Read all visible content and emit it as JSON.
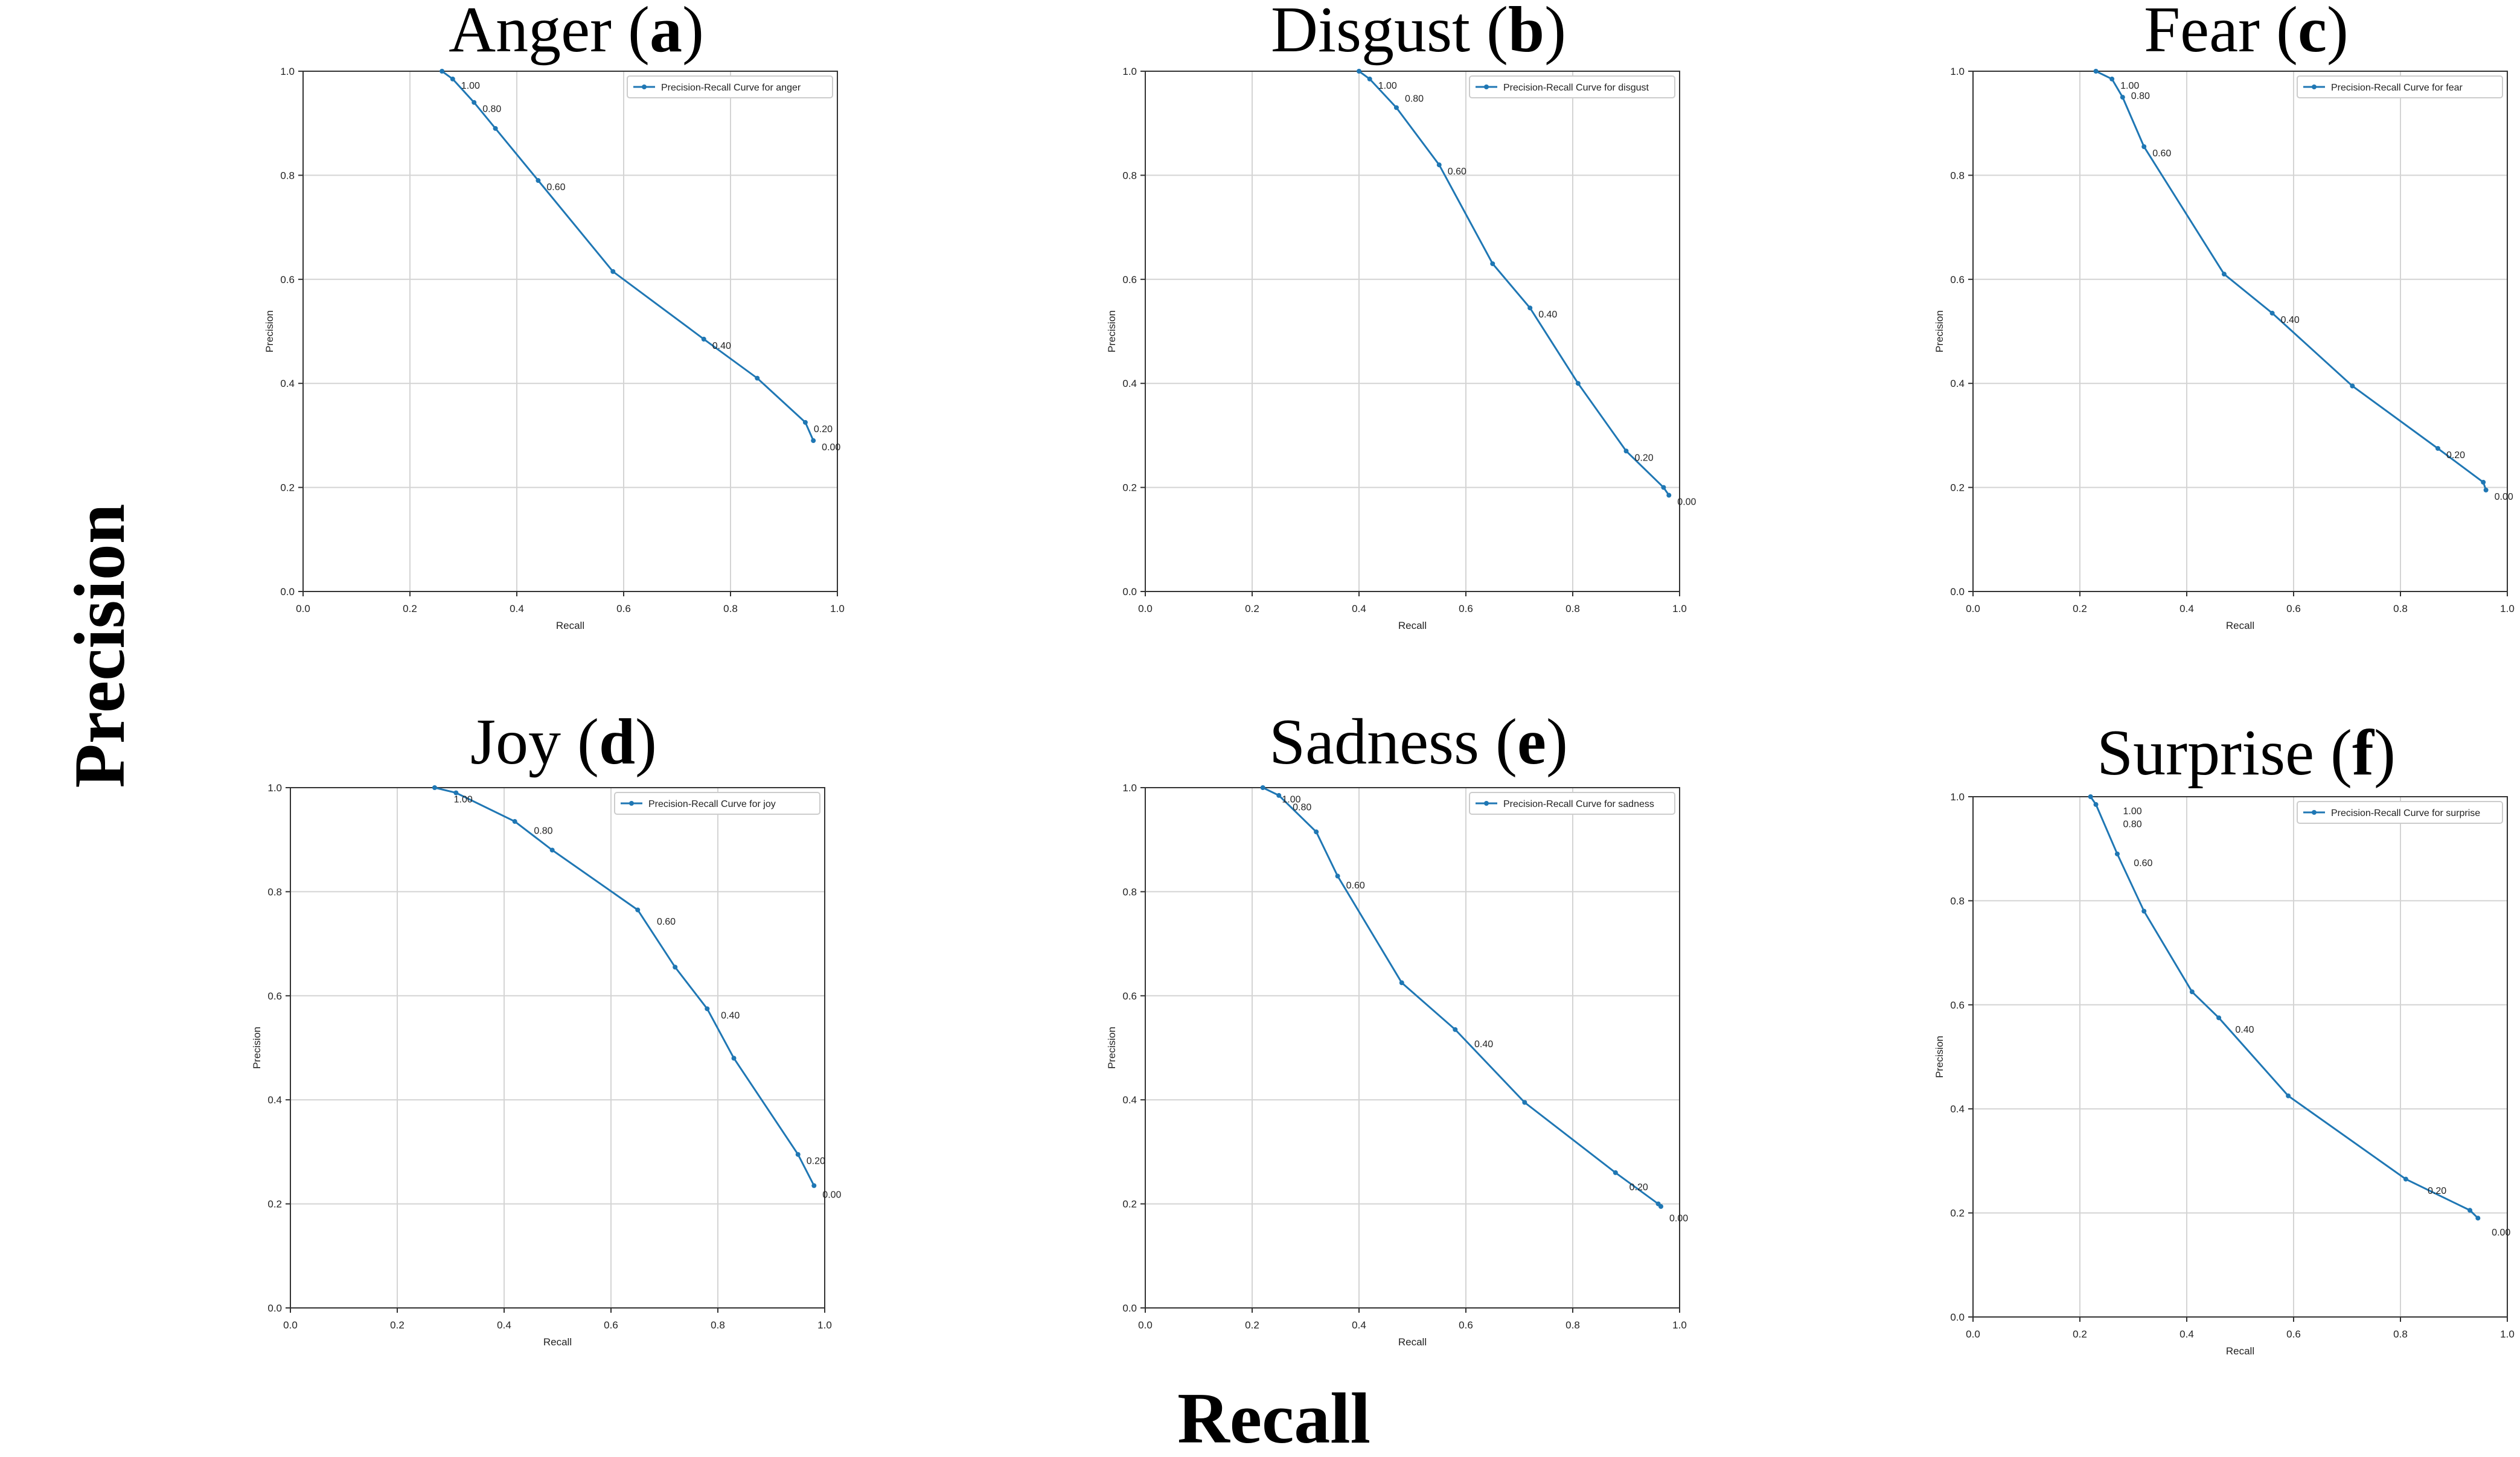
{
  "figure": {
    "xlabel": "Recall",
    "ylabel": "Precision"
  },
  "chart_data": [
    {
      "type": "line",
      "title": "Anger",
      "title_letter": "a",
      "xlabel": "Recall",
      "ylabel": "Precision",
      "xlim": [
        0.0,
        1.0
      ],
      "ylim": [
        0.0,
        1.0
      ],
      "xticks": [
        "0.0",
        "0.2",
        "0.4",
        "0.6",
        "0.8",
        "1.0"
      ],
      "yticks": [
        "0.0",
        "0.2",
        "0.4",
        "0.6",
        "0.8",
        "1.0"
      ],
      "grid": true,
      "legend": "top-right",
      "series": [
        {
          "name": "Precision-Recall Curve for anger",
          "color": "#1f77b4",
          "x": [
            0.26,
            0.28,
            0.32,
            0.36,
            0.44,
            0.58,
            0.75,
            0.85,
            0.94,
            0.955
          ],
          "y": [
            1.0,
            0.985,
            0.94,
            0.89,
            0.79,
            0.615,
            0.485,
            0.41,
            0.325,
            0.29
          ]
        }
      ],
      "annotations": [
        {
          "text": "1.00",
          "x": 0.28,
          "y": 0.985
        },
        {
          "text": "0.80",
          "x": 0.32,
          "y": 0.94
        },
        {
          "text": "0.60",
          "x": 0.44,
          "y": 0.79
        },
        {
          "text": "0.40",
          "x": 0.75,
          "y": 0.485
        },
        {
          "text": "0.20",
          "x": 0.94,
          "y": 0.325
        },
        {
          "text": "0.00",
          "x": 0.955,
          "y": 0.29
        }
      ]
    },
    {
      "type": "line",
      "title": "Disgust",
      "title_letter": "b",
      "xlabel": "Recall",
      "ylabel": "Precision",
      "xlim": [
        0.0,
        1.0
      ],
      "ylim": [
        0.0,
        1.0
      ],
      "xticks": [
        "0.0",
        "0.2",
        "0.4",
        "0.6",
        "0.8",
        "1.0"
      ],
      "yticks": [
        "0.0",
        "0.2",
        "0.4",
        "0.6",
        "0.8",
        "1.0"
      ],
      "grid": true,
      "legend": "top-right",
      "series": [
        {
          "name": "Precision-Recall Curve for disgust",
          "color": "#1f77b4",
          "x": [
            0.4,
            0.42,
            0.47,
            0.55,
            0.65,
            0.72,
            0.81,
            0.9,
            0.97,
            0.98
          ],
          "y": [
            1.0,
            0.985,
            0.93,
            0.82,
            0.63,
            0.545,
            0.4,
            0.27,
            0.2,
            0.185
          ]
        }
      ],
      "annotations": [
        {
          "text": "1.00",
          "x": 0.42,
          "y": 0.985
        },
        {
          "text": "0.80",
          "x": 0.47,
          "y": 0.96
        },
        {
          "text": "0.60",
          "x": 0.55,
          "y": 0.82
        },
        {
          "text": "0.40",
          "x": 0.72,
          "y": 0.545
        },
        {
          "text": "0.20",
          "x": 0.9,
          "y": 0.27
        },
        {
          "text": "0.00",
          "x": 0.98,
          "y": 0.185
        }
      ]
    },
    {
      "type": "line",
      "title": "Fear",
      "title_letter": "c",
      "xlabel": "Recall",
      "ylabel": "Precision",
      "xlim": [
        0.0,
        1.0
      ],
      "ylim": [
        0.0,
        1.0
      ],
      "xticks": [
        "0.0",
        "0.2",
        "0.4",
        "0.6",
        "0.8",
        "1.0"
      ],
      "yticks": [
        "0.0",
        "0.2",
        "0.4",
        "0.6",
        "0.8",
        "1.0"
      ],
      "grid": true,
      "legend": "top-right",
      "series": [
        {
          "name": "Precision-Recall Curve for fear",
          "color": "#1f77b4",
          "x": [
            0.23,
            0.26,
            0.28,
            0.32,
            0.47,
            0.56,
            0.71,
            0.87,
            0.955,
            0.96
          ],
          "y": [
            1.0,
            0.985,
            0.95,
            0.855,
            0.61,
            0.535,
            0.395,
            0.275,
            0.21,
            0.195
          ]
        }
      ],
      "annotations": [
        {
          "text": "1.00",
          "x": 0.26,
          "y": 0.985
        },
        {
          "text": "0.80",
          "x": 0.28,
          "y": 0.965
        },
        {
          "text": "0.60",
          "x": 0.32,
          "y": 0.855
        },
        {
          "text": "0.40",
          "x": 0.56,
          "y": 0.535
        },
        {
          "text": "0.20",
          "x": 0.87,
          "y": 0.275
        },
        {
          "text": "0.00",
          "x": 0.96,
          "y": 0.195
        }
      ]
    },
    {
      "type": "line",
      "title": "Joy",
      "title_letter": "d",
      "xlabel": "Recall",
      "ylabel": "Precision",
      "xlim": [
        0.0,
        1.0
      ],
      "ylim": [
        0.0,
        1.0
      ],
      "xticks": [
        "0.0",
        "0.2",
        "0.4",
        "0.6",
        "0.8",
        "1.0"
      ],
      "yticks": [
        "0.0",
        "0.2",
        "0.4",
        "0.6",
        "0.8",
        "1.0"
      ],
      "grid": true,
      "legend": "top-right",
      "series": [
        {
          "name": "Precision-Recall Curve for joy",
          "color": "#1f77b4",
          "x": [
            0.27,
            0.31,
            0.42,
            0.49,
            0.65,
            0.72,
            0.78,
            0.83,
            0.95,
            0.98
          ],
          "y": [
            1.0,
            0.99,
            0.935,
            0.88,
            0.765,
            0.655,
            0.575,
            0.48,
            0.295,
            0.235
          ]
        }
      ],
      "annotations": [
        {
          "text": "1.00",
          "x": 0.29,
          "y": 0.99
        },
        {
          "text": "0.80",
          "x": 0.44,
          "y": 0.93
        },
        {
          "text": "0.60",
          "x": 0.67,
          "y": 0.755
        },
        {
          "text": "0.40",
          "x": 0.79,
          "y": 0.575
        },
        {
          "text": "0.20",
          "x": 0.95,
          "y": 0.295
        },
        {
          "text": "0.00",
          "x": 0.98,
          "y": 0.23
        }
      ]
    },
    {
      "type": "line",
      "title": "Sadness",
      "title_letter": "e",
      "xlabel": "Recall",
      "ylabel": "Precision",
      "xlim": [
        0.0,
        1.0
      ],
      "ylim": [
        0.0,
        1.0
      ],
      "xticks": [
        "0.0",
        "0.2",
        "0.4",
        "0.6",
        "0.8",
        "1.0"
      ],
      "yticks": [
        "0.0",
        "0.2",
        "0.4",
        "0.6",
        "0.8",
        "1.0"
      ],
      "grid": true,
      "legend": "top-right",
      "series": [
        {
          "name": "Precision-Recall Curve for sadness",
          "color": "#1f77b4",
          "x": [
            0.22,
            0.25,
            0.32,
            0.36,
            0.48,
            0.58,
            0.71,
            0.88,
            0.96,
            0.965
          ],
          "y": [
            1.0,
            0.985,
            0.915,
            0.83,
            0.625,
            0.535,
            0.395,
            0.26,
            0.2,
            0.195
          ]
        }
      ],
      "annotations": [
        {
          "text": "1.00",
          "x": 0.24,
          "y": 0.99
        },
        {
          "text": "0.80",
          "x": 0.26,
          "y": 0.975
        },
        {
          "text": "0.60",
          "x": 0.36,
          "y": 0.825
        },
        {
          "text": "0.40",
          "x": 0.6,
          "y": 0.52
        },
        {
          "text": "0.20",
          "x": 0.89,
          "y": 0.245
        },
        {
          "text": "0.00",
          "x": 0.965,
          "y": 0.185
        }
      ]
    },
    {
      "type": "line",
      "title": "Surprise",
      "title_letter": "f",
      "xlabel": "Recall",
      "ylabel": "Precision",
      "xlim": [
        0.0,
        1.0
      ],
      "ylim": [
        0.0,
        1.0
      ],
      "xticks": [
        "0.0",
        "0.2",
        "0.4",
        "0.6",
        "0.8",
        "1.0"
      ],
      "yticks": [
        "0.0",
        "0.2",
        "0.4",
        "0.6",
        "0.8",
        "1.0"
      ],
      "grid": true,
      "legend": "top-right",
      "series": [
        {
          "name": "Precision-Recall Curve for surprise",
          "color": "#1f77b4",
          "x": [
            0.22,
            0.23,
            0.27,
            0.32,
            0.41,
            0.46,
            0.59,
            0.81,
            0.93,
            0.945
          ],
          "y": [
            1.0,
            0.985,
            0.89,
            0.78,
            0.625,
            0.575,
            0.425,
            0.265,
            0.205,
            0.19
          ]
        }
      ],
      "annotations": [
        {
          "text": "1.00",
          "x": 0.265,
          "y": 0.985
        },
        {
          "text": "0.80",
          "x": 0.265,
          "y": 0.96
        },
        {
          "text": "0.60",
          "x": 0.285,
          "y": 0.885
        },
        {
          "text": "0.40",
          "x": 0.475,
          "y": 0.565
        },
        {
          "text": "0.20",
          "x": 0.835,
          "y": 0.255
        },
        {
          "text": "0.00",
          "x": 0.955,
          "y": 0.175
        }
      ]
    }
  ]
}
